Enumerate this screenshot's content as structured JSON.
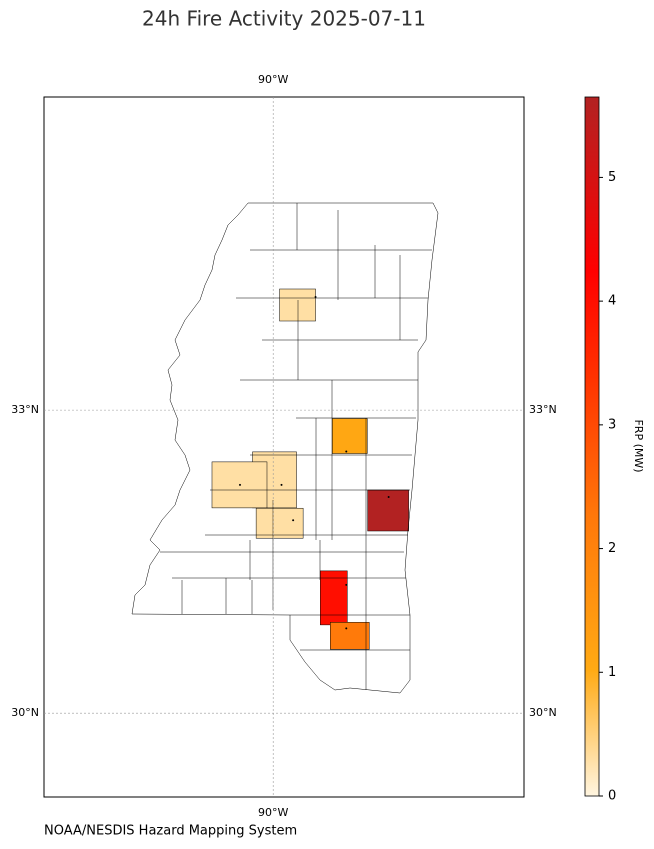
{
  "map": {
    "title": "24h Fire Activity 2025-07-11",
    "lonlim": [
      -92.76,
      -86.98
    ],
    "latlim": [
      29.17,
      36.1
    ],
    "lonticks": [
      {
        "value": -90,
        "label": "90°W"
      }
    ],
    "latticks": [
      {
        "value": 33,
        "label": "33°N"
      },
      {
        "value": 30,
        "label": "30°N"
      }
    ],
    "fires": [
      {
        "lon": -89.49,
        "lat": 34.12,
        "frp": 0.3
      },
      {
        "lon": -89.12,
        "lat": 32.59,
        "frp": 1.1
      },
      {
        "lon": -88.61,
        "lat": 32.14,
        "frp": 5.65
      },
      {
        "lon": -89.9,
        "lat": 32.26,
        "frp": 0.3
      },
      {
        "lon": -89.76,
        "lat": 31.91,
        "frp": 0.3
      },
      {
        "lon": -90.4,
        "lat": 32.26,
        "frp": 0.3
      },
      {
        "lon": -89.12,
        "lat": 31.27,
        "frp": 4.0
      },
      {
        "lon": -89.12,
        "lat": 30.84,
        "frp": 2.2
      }
    ],
    "colorbar": {
      "label": "FRP (MW)",
      "lim": [
        0,
        5.65
      ],
      "ticks": [
        0,
        1,
        2,
        3,
        4,
        5
      ]
    },
    "source": "NOAA/NESDIS Hazard Mapping System"
  }
}
